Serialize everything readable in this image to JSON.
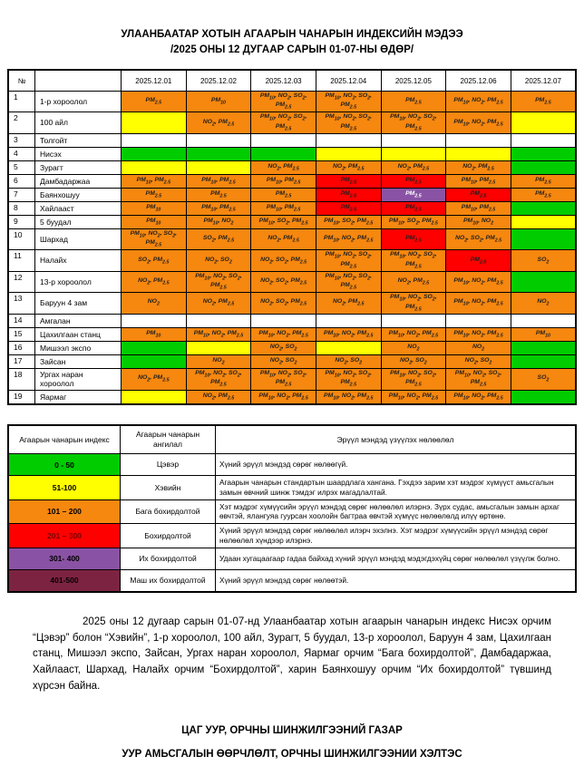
{
  "title": {
    "line1": "УЛААНБААТАР ХОТЫН АГААРЫН ЧАНАРЫН ИНДЕКСИЙН МЭДЭЭ",
    "line2": "/2025 ОНЫ 12 ДУГААР САРЫН 01-07-НЫ ӨДӨР/"
  },
  "colors": {
    "green": "#00cc00",
    "yellow": "#ffff00",
    "orange": "#f6870f",
    "red": "#ff0000",
    "purple": "#8a52a5",
    "maroon": "#7d2342"
  },
  "main_table": {
    "no_header": "№",
    "name_header": "",
    "dates": [
      "2025.12.01",
      "2025.12.02",
      "2025.12.03",
      "2025.12.04",
      "2025.12.05",
      "2025.12.06",
      "2025.12.07"
    ],
    "rows": [
      {
        "no": "1",
        "name": "1-р хороолол",
        "cells": [
          {
            "t": "PM2.5",
            "c": "orange"
          },
          {
            "t": "PM10",
            "c": "orange"
          },
          {
            "t": "PM10, NO2, SO2, PM2.5",
            "c": "orange"
          },
          {
            "t": "PM10, NO2, SO2, PM2.5",
            "c": "orange"
          },
          {
            "t": "PM2.5",
            "c": "orange"
          },
          {
            "t": "PM10, NO2, PM2.5",
            "c": "orange"
          },
          {
            "t": "PM2.5",
            "c": "orange"
          }
        ]
      },
      {
        "no": "2",
        "name": "100 айл",
        "cells": [
          {
            "t": "",
            "c": "yellow"
          },
          {
            "t": "NO2, PM2.5",
            "c": "orange"
          },
          {
            "t": "PM10, NO2, SO2, PM2.5",
            "c": "orange"
          },
          {
            "t": "PM10, NO2, SO2, PM2.5",
            "c": "orange"
          },
          {
            "t": "PM10, NO2, SO2, PM2.5",
            "c": "orange"
          },
          {
            "t": "PM10, NO2, PM2.5",
            "c": "orange"
          },
          {
            "t": "",
            "c": "yellow"
          }
        ]
      },
      {
        "no": "3",
        "name": "Толгойт",
        "cells": [
          {
            "t": "",
            "c": "none"
          },
          {
            "t": "",
            "c": "none"
          },
          {
            "t": "",
            "c": "none"
          },
          {
            "t": "",
            "c": "none"
          },
          {
            "t": "",
            "c": "none"
          },
          {
            "t": "",
            "c": "none"
          },
          {
            "t": "",
            "c": "none"
          }
        ]
      },
      {
        "no": "4",
        "name": "Нисэх",
        "cells": [
          {
            "t": "",
            "c": "green"
          },
          {
            "t": "",
            "c": "green"
          },
          {
            "t": "",
            "c": "green"
          },
          {
            "t": "",
            "c": "yellow"
          },
          {
            "t": "",
            "c": "yellow"
          },
          {
            "t": "",
            "c": "yellow"
          },
          {
            "t": "",
            "c": "green"
          }
        ]
      },
      {
        "no": "5",
        "name": "Зурагт",
        "cells": [
          {
            "t": "",
            "c": "yellow"
          },
          {
            "t": "",
            "c": "yellow"
          },
          {
            "t": "NO2, PM2.5",
            "c": "orange"
          },
          {
            "t": "NO2, PM2.5",
            "c": "orange"
          },
          {
            "t": "NO2, PM2.5",
            "c": "orange"
          },
          {
            "t": "NO2, PM2.5",
            "c": "orange"
          },
          {
            "t": "",
            "c": "green"
          }
        ]
      },
      {
        "no": "6",
        "name": "Дамбадаржаа",
        "cells": [
          {
            "t": "PM10, PM2.5",
            "c": "orange"
          },
          {
            "t": "PM10, PM2.5",
            "c": "orange"
          },
          {
            "t": "PM10, PM2.5",
            "c": "orange"
          },
          {
            "t": "PM2.5",
            "c": "red"
          },
          {
            "t": "PM2.5",
            "c": "red"
          },
          {
            "t": "PM10, PM2.5",
            "c": "orange"
          },
          {
            "t": "PM2.5",
            "c": "orange"
          }
        ]
      },
      {
        "no": "7",
        "name": "Баянхошуу",
        "cells": [
          {
            "t": "PM2.5",
            "c": "orange"
          },
          {
            "t": "PM2.5",
            "c": "orange"
          },
          {
            "t": "PM2.5",
            "c": "orange"
          },
          {
            "t": "PM2.5",
            "c": "red"
          },
          {
            "t": "PM2.5",
            "c": "purple"
          },
          {
            "t": "PM2.5",
            "c": "red"
          },
          {
            "t": "PM2.5",
            "c": "orange"
          }
        ]
      },
      {
        "no": "8",
        "name": "Хайлааст",
        "cells": [
          {
            "t": "PM10",
            "c": "orange"
          },
          {
            "t": "PM10, PM2.5",
            "c": "orange"
          },
          {
            "t": "PM10, PM2.5",
            "c": "orange"
          },
          {
            "t": "PM2.5",
            "c": "red"
          },
          {
            "t": "PM2.5",
            "c": "red"
          },
          {
            "t": "PM10, PM2.5",
            "c": "orange"
          },
          {
            "t": "",
            "c": "green"
          }
        ]
      },
      {
        "no": "9",
        "name": "5 буудал",
        "cells": [
          {
            "t": "PM10",
            "c": "orange"
          },
          {
            "t": "PM10, NO2",
            "c": "orange"
          },
          {
            "t": "PM10, SO2, PM2.5",
            "c": "orange"
          },
          {
            "t": "PM10, SO2, PM2.5",
            "c": "orange"
          },
          {
            "t": "PM10, SO2, PM2.5",
            "c": "orange"
          },
          {
            "t": "PM10, NO2",
            "c": "orange"
          },
          {
            "t": "",
            "c": "yellow"
          }
        ]
      },
      {
        "no": "10",
        "name": "Шархад",
        "cells": [
          {
            "t": "PM10, NO2, SO2, PM2.5",
            "c": "orange"
          },
          {
            "t": "SO2, PM2.5",
            "c": "orange"
          },
          {
            "t": "NO2, PM2.5",
            "c": "orange"
          },
          {
            "t": "PM10, NO2, PM2.5",
            "c": "orange"
          },
          {
            "t": "PM2.5",
            "c": "red"
          },
          {
            "t": "NO2, SO2, PM2.5",
            "c": "orange"
          },
          {
            "t": "",
            "c": "green"
          }
        ]
      },
      {
        "no": "11",
        "name": "Налайх",
        "cells": [
          {
            "t": "SO2, PM2.5",
            "c": "orange"
          },
          {
            "t": "NO2, SO2",
            "c": "orange"
          },
          {
            "t": "NO2, SO2, PM2.5",
            "c": "orange"
          },
          {
            "t": "PM10, NO2, SO2, PM2.5",
            "c": "orange"
          },
          {
            "t": "PM10, NO2, SO2, PM2.5",
            "c": "orange"
          },
          {
            "t": "PM2.5",
            "c": "red"
          },
          {
            "t": "SO2",
            "c": "orange"
          }
        ]
      },
      {
        "no": "12",
        "name": "13-р хороолол",
        "cells": [
          {
            "t": "NO2, PM2.5",
            "c": "orange"
          },
          {
            "t": "PM10, NO2, SO2, PM2.5",
            "c": "orange"
          },
          {
            "t": "NO2, SO2, PM2.5",
            "c": "orange"
          },
          {
            "t": "PM10, NO2, SO2, PM2.5",
            "c": "orange"
          },
          {
            "t": "NO2, PM2.5",
            "c": "orange"
          },
          {
            "t": "PM10, NO2, PM2.5",
            "c": "orange"
          },
          {
            "t": "",
            "c": "green"
          }
        ]
      },
      {
        "no": "13",
        "name": "Баруун 4 зам",
        "cells": [
          {
            "t": "NO2",
            "c": "orange"
          },
          {
            "t": "NO2, PM2.5",
            "c": "orange"
          },
          {
            "t": "NO2, SO2, PM2.5",
            "c": "orange"
          },
          {
            "t": "NO2, PM2.5",
            "c": "orange"
          },
          {
            "t": "PM10, NO2, SO2, PM2.5",
            "c": "orange"
          },
          {
            "t": "PM10, NO2, PM2.5",
            "c": "orange"
          },
          {
            "t": "NO2",
            "c": "orange"
          }
        ]
      },
      {
        "no": "14",
        "name": "Амгалан",
        "cells": [
          {
            "t": "",
            "c": "none"
          },
          {
            "t": "",
            "c": "none"
          },
          {
            "t": "",
            "c": "none"
          },
          {
            "t": "",
            "c": "none"
          },
          {
            "t": "",
            "c": "none"
          },
          {
            "t": "",
            "c": "none"
          },
          {
            "t": "",
            "c": "none"
          }
        ]
      },
      {
        "no": "15",
        "name": "Цахилгаан станц",
        "cells": [
          {
            "t": "PM10",
            "c": "orange"
          },
          {
            "t": "PM10, NO2, PM2.5",
            "c": "orange"
          },
          {
            "t": "PM10, NO2, PM2.5",
            "c": "orange"
          },
          {
            "t": "PM10, NO2, PM2.5",
            "c": "orange"
          },
          {
            "t": "PM10, NO2, PM2.5",
            "c": "orange"
          },
          {
            "t": "PM10, NO2, PM2.5",
            "c": "orange"
          },
          {
            "t": "PM10",
            "c": "orange"
          }
        ]
      },
      {
        "no": "16",
        "name": "Мишээл экспо",
        "cells": [
          {
            "t": "",
            "c": "green"
          },
          {
            "t": "",
            "c": "yellow"
          },
          {
            "t": "NO2, SO2",
            "c": "orange"
          },
          {
            "t": "",
            "c": "yellow"
          },
          {
            "t": "NO2",
            "c": "orange"
          },
          {
            "t": "NO2",
            "c": "orange"
          },
          {
            "t": "",
            "c": "green"
          }
        ]
      },
      {
        "no": "17",
        "name": "Зайсан",
        "cells": [
          {
            "t": "",
            "c": "green"
          },
          {
            "t": "NO2",
            "c": "orange"
          },
          {
            "t": "NO2, SO2",
            "c": "orange"
          },
          {
            "t": "NO2, SO2",
            "c": "orange"
          },
          {
            "t": "NO2, SO2",
            "c": "orange"
          },
          {
            "t": "NO2, SO2",
            "c": "orange"
          },
          {
            "t": "",
            "c": "green"
          }
        ]
      },
      {
        "no": "18",
        "name": "Ургах наран хороолол",
        "cells": [
          {
            "t": "NO2, PM2.5",
            "c": "orange"
          },
          {
            "t": "PM10, NO2, SO2, PM2.5",
            "c": "orange"
          },
          {
            "t": "PM10, NO2, SO2, PM2.5",
            "c": "orange"
          },
          {
            "t": "PM10, NO2, SO2, PM2.5",
            "c": "orange"
          },
          {
            "t": "PM10, NO2, SO2, PM2.5",
            "c": "orange"
          },
          {
            "t": "PM10, NO2, SO2, PM2.5",
            "c": "orange"
          },
          {
            "t": "SO2",
            "c": "orange"
          }
        ]
      },
      {
        "no": "19",
        "name": "Яармаг",
        "cells": [
          {
            "t": "",
            "c": "yellow"
          },
          {
            "t": "NO2, PM2.5",
            "c": "orange"
          },
          {
            "t": "PM10, NO2, PM2.5",
            "c": "orange"
          },
          {
            "t": "PM10, NO2, PM2.5",
            "c": "orange"
          },
          {
            "t": "PM10, NO2, PM2.5",
            "c": "orange"
          },
          {
            "t": "PM10, NO2, PM2.5",
            "c": "orange"
          },
          {
            "t": "",
            "c": "green"
          }
        ]
      }
    ]
  },
  "legend_table": {
    "headers": [
      "Агаарын чанарын индекс",
      "Агаарын чанарын ангилал",
      "Эрүүл мэндэд үзүүлэх нөлөөлөл"
    ],
    "rows": [
      {
        "range": "0 - 50",
        "level": "green",
        "category": "Цэвэр",
        "effect": "Хүний эрүүл мэндэд сөрөг нөлөөгүй."
      },
      {
        "range": "51-100",
        "level": "yellow",
        "category": "Хэвийн",
        "effect": "Агаарын чанарын стандартын шаардлага хангана. Гэхдээ зарим хэт мэдрэг хүмүүст  амьсгалын замын өвчний шинж тэмдэг илрэх магадлалтай."
      },
      {
        "range": "101 – 200",
        "level": "orange",
        "category": "Бага бохирдолтой",
        "effect": "Хэт мэдрэг хүмүүсийн эрүүл мэндэд  сөрөг нөлөөлөл илэрнэ. Зүрх судас, амьсгалын замын архаг өвчтэй, ялангуяа гуурсан хоолойн багтраа өвчтэй хүмүүс нөлөөлөлд илүү өртөнө."
      },
      {
        "range": "201 – 300",
        "level": "red",
        "category": "Бохирдолтой",
        "effect": "Хүний эрүүл мэндэд сөрөг нөлөөлөл илэрч эхэлнэ. Хэт мэдрэг хүмүүсийн эрүүл мэндэд сөрөг нөлөөлөл хүндээр илэрнэ."
      },
      {
        "range": "301- 400",
        "level": "purple",
        "category": "Их бохирдолтой",
        "effect": "Удаан хугацаагаар гадаа байхад хүний эрүүл мэндэд мэдэгдэхүйц сөрөг нөлөөлөл үзүүлж болно."
      },
      {
        "range": "401-500",
        "level": "maroon",
        "category": "Маш их бохирдолтой",
        "effect": "Хүний эрүүл мэндэд сөрөг нөлөөтэй."
      }
    ]
  },
  "summary": "2025 оны 12 дугаар сарын 01-07-нд Улаанбаатар хотын агаарын чанарын индекс Нисэх орчим “Цэвэр” болон “Хэвийн”, 1-р хороолол, 100 айл, Зурагт, 5 буудал, 13-р хороолол, Баруун 4 зам, Цахилгаан станц, Мишээл экспо, Зайсан, Ургах наран хороолол, Яармаг орчим “Бага бохирдолтой”, Дамбадаржаа, Хайлааст, Шархад, Налайх орчим “Бохирдолтой”, харин Баянхошуу орчим “Их бохирдолтой” түвшинд хүрсэн байна.",
  "footer": {
    "line1": "ЦАГ УУР, ОРЧНЫ ШИНЖИЛГЭЭНИЙ ГАЗАР",
    "line2": "УУР АМЬСГАЛЫН ӨӨРЧЛӨЛТ, ОРЧНЫ ШИНЖИЛГЭЭНИИ ХЭЛТЭС"
  }
}
